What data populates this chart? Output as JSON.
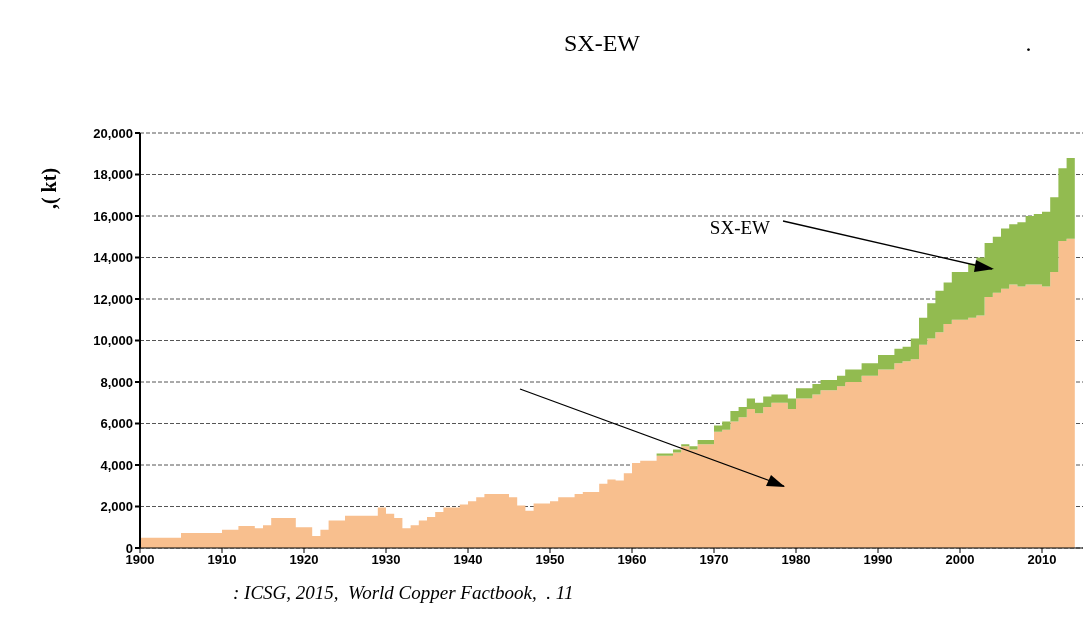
{
  "chart_data": {
    "type": "area",
    "stacked": true,
    "title": "SX-EW .",
    "ylabel": ",( kt)",
    "annotations": [
      "SX-EW",
      ": ICSG, 2015,  World Copper Factbook,  . 11"
    ],
    "x": [
      1900,
      1905,
      1910,
      1912,
      1914,
      1915,
      1916,
      1919,
      1921,
      1922,
      1923,
      1925,
      1929,
      1930,
      1931,
      1932,
      1933,
      1934,
      1935,
      1936,
      1937,
      1939,
      1940,
      1941,
      1942,
      1945,
      1946,
      1947,
      1948,
      1950,
      1951,
      1953,
      1954,
      1956,
      1957,
      1958,
      1959,
      1960,
      1961,
      1963,
      1965,
      1966,
      1967,
      1968,
      1970,
      1971,
      1972,
      1973,
      1974,
      1975,
      1976,
      1977,
      1978,
      1979,
      1980,
      1982,
      1983,
      1985,
      1986,
      1988,
      1990,
      1992,
      1993,
      1994,
      1995,
      1996,
      1997,
      1998,
      1999,
      2001,
      2002,
      2003,
      2004,
      2005,
      2006,
      2007,
      2008,
      2009,
      2010,
      2011,
      2012,
      2013,
      2014
    ],
    "series": [
      {
        "color": "#f8bf8e",
        "values": [
          500,
          720,
          880,
          1060,
          950,
          1100,
          1450,
          1000,
          580,
          880,
          1320,
          1550,
          1950,
          1650,
          1450,
          950,
          1100,
          1330,
          1500,
          1730,
          1950,
          2100,
          2250,
          2450,
          2600,
          2450,
          2050,
          1800,
          2150,
          2250,
          2450,
          2600,
          2700,
          3100,
          3300,
          3250,
          3600,
          4100,
          4200,
          4450,
          4600,
          4900,
          4750,
          5000,
          5600,
          5700,
          6100,
          6300,
          6700,
          6500,
          6800,
          7000,
          7000,
          6700,
          7200,
          7400,
          7600,
          7800,
          8000,
          8300,
          8600,
          8900,
          9000,
          9100,
          9800,
          10100,
          10400,
          10800,
          11000,
          11100,
          11200,
          12100,
          12300,
          12500,
          12700,
          12600,
          12700,
          12700,
          12600,
          13300,
          14800,
          14900,
          14900
        ]
      },
      {
        "color": "#92bb50",
        "values": [
          null,
          null,
          null,
          null,
          null,
          null,
          null,
          null,
          null,
          null,
          null,
          null,
          null,
          null,
          null,
          null,
          null,
          null,
          null,
          null,
          null,
          null,
          null,
          null,
          null,
          null,
          null,
          null,
          null,
          null,
          null,
          null,
          null,
          null,
          null,
          null,
          null,
          null,
          null,
          100,
          150,
          100,
          150,
          200,
          300,
          400,
          500,
          500,
          500,
          500,
          500,
          400,
          400,
          500,
          500,
          500,
          500,
          500,
          600,
          600,
          700,
          700,
          700,
          1000,
          1300,
          1700,
          2000,
          2000,
          2300,
          2600,
          2800,
          2600,
          2700,
          2900,
          2900,
          3100,
          3300,
          3400,
          3600,
          3600,
          3500,
          3900,
          3900
        ]
      }
    ],
    "xlim": [
      1900,
      2015
    ],
    "xticks": [
      1900,
      1910,
      1920,
      1930,
      1940,
      1950,
      1960,
      1970,
      1980,
      1990,
      2000,
      2010
    ],
    "ylim": [
      0,
      20000
    ],
    "yticks": [
      0,
      {
        "value": 2000,
        "label": "2,000"
      },
      {
        "value": 4000,
        "label": "4,000"
      },
      {
        "value": 6000,
        "label": "6,000"
      },
      {
        "value": 8000,
        "label": "8,000"
      },
      {
        "value": 10000,
        "label": "10,000"
      },
      {
        "value": 12000,
        "label": "12,000"
      },
      {
        "value": 14000,
        "label": "14,000"
      },
      {
        "value": 16000,
        "label": "16,000"
      },
      {
        "value": 18000,
        "label": "18,000"
      },
      {
        "value": 20000,
        "label": "20,000"
      }
    ],
    "grid": "y"
  }
}
